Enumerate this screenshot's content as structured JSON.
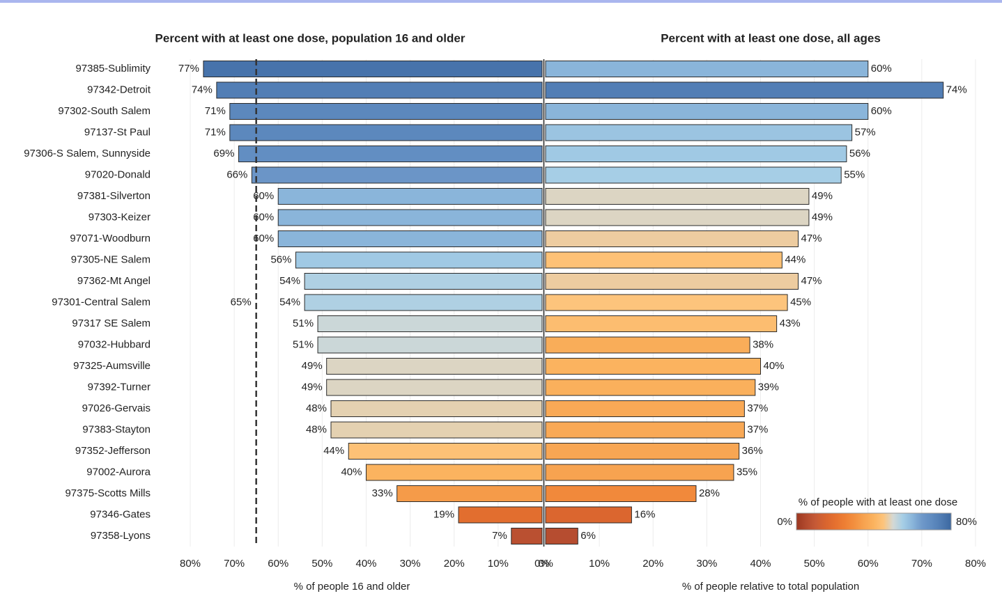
{
  "chart_data": [
    {
      "type": "bar",
      "orientation": "horizontal",
      "title": "Percent with at least one dose, population 16 and older",
      "x_label": "% of people 16 and older",
      "categories": [
        "97385-Sublimity",
        "97342-Detroit",
        "97302-South Salem",
        "97137-St Paul",
        "97306-S Salem, Sunnyside",
        "97020-Donald",
        "97381-Silverton",
        "97303-Keizer",
        "97071-Woodburn",
        "97305-NE Salem",
        "97362-Mt Angel",
        "97301-Central Salem",
        "97317 SE Salem",
        "97032-Hubbard",
        "97325-Aumsville",
        "97392-Turner",
        "97026-Gervais",
        "97383-Stayton",
        "97352-Jefferson",
        "97002-Aurora",
        "97375-Scotts Mills",
        "97346-Gates",
        "97358-Lyons"
      ],
      "values": [
        77,
        74,
        71,
        71,
        69,
        66,
        60,
        60,
        60,
        56,
        54,
        54,
        51,
        51,
        49,
        49,
        48,
        48,
        44,
        40,
        33,
        19,
        7
      ],
      "value_labels": [
        "77%",
        "74%",
        "71%",
        "71%",
        "69%",
        "66%",
        "60%",
        "60%",
        "60%",
        "56%",
        "54%",
        "54%",
        "51%",
        "51%",
        "49%",
        "49%",
        "48%",
        "48%",
        "44%",
        "40%",
        "33%",
        "19%",
        "7%"
      ],
      "xlim": [
        80,
        0
      ],
      "xticks": [
        {
          "value": 80,
          "label": "80%"
        },
        {
          "value": 70,
          "label": "70%"
        },
        {
          "value": 60,
          "label": "60%"
        },
        {
          "value": 50,
          "label": "50%"
        },
        {
          "value": 40,
          "label": "40%"
        },
        {
          "value": 30,
          "label": "30%"
        },
        {
          "value": 20,
          "label": "20%"
        },
        {
          "value": 10,
          "label": "10%"
        },
        {
          "value": 0,
          "label": "0%"
        }
      ],
      "grid": true,
      "reference_line": {
        "value": 65,
        "label": "65%",
        "style": "dashed",
        "color": "#333333"
      }
    },
    {
      "type": "bar",
      "orientation": "horizontal",
      "title": "Percent with at least one dose, all ages",
      "x_label": "% of people relative to total population",
      "values": [
        60,
        74,
        60,
        57,
        56,
        55,
        49,
        49,
        47,
        44,
        47,
        45,
        43,
        38,
        40,
        39,
        37,
        37,
        36,
        35,
        28,
        16,
        6
      ],
      "value_labels": [
        "60%",
        "74%",
        "60%",
        "57%",
        "56%",
        "55%",
        "49%",
        "49%",
        "47%",
        "44%",
        "47%",
        "45%",
        "43%",
        "38%",
        "40%",
        "39%",
        "37%",
        "37%",
        "36%",
        "35%",
        "28%",
        "16%",
        "6%"
      ],
      "xlim": [
        0,
        80
      ],
      "xticks": [
        {
          "value": 0,
          "label": "0%"
        },
        {
          "value": 10,
          "label": "10%"
        },
        {
          "value": 20,
          "label": "20%"
        },
        {
          "value": 30,
          "label": "30%"
        },
        {
          "value": 40,
          "label": "40%"
        },
        {
          "value": 50,
          "label": "50%"
        },
        {
          "value": 60,
          "label": "60%"
        },
        {
          "value": 70,
          "label": "70%"
        },
        {
          "value": 80,
          "label": "80%"
        }
      ],
      "grid": true,
      "colorbar": {
        "title": "% of people with at least one dose",
        "min": {
          "value": 0,
          "label": "0%"
        },
        "max": {
          "value": 80,
          "label": "80%"
        },
        "colors": [
          "#9c3720",
          "#b24a2e",
          "#c65a36",
          "#d8642f",
          "#e5702f",
          "#ee7f34",
          "#f3903f",
          "#f7a350",
          "#fbb35f",
          "#fdc47c",
          "#d4d9d5",
          "#a6cee6",
          "#8ab5da",
          "#6e98c9",
          "#5f8bc0",
          "#4f7bb2",
          "#3c68a0"
        ]
      }
    }
  ]
}
